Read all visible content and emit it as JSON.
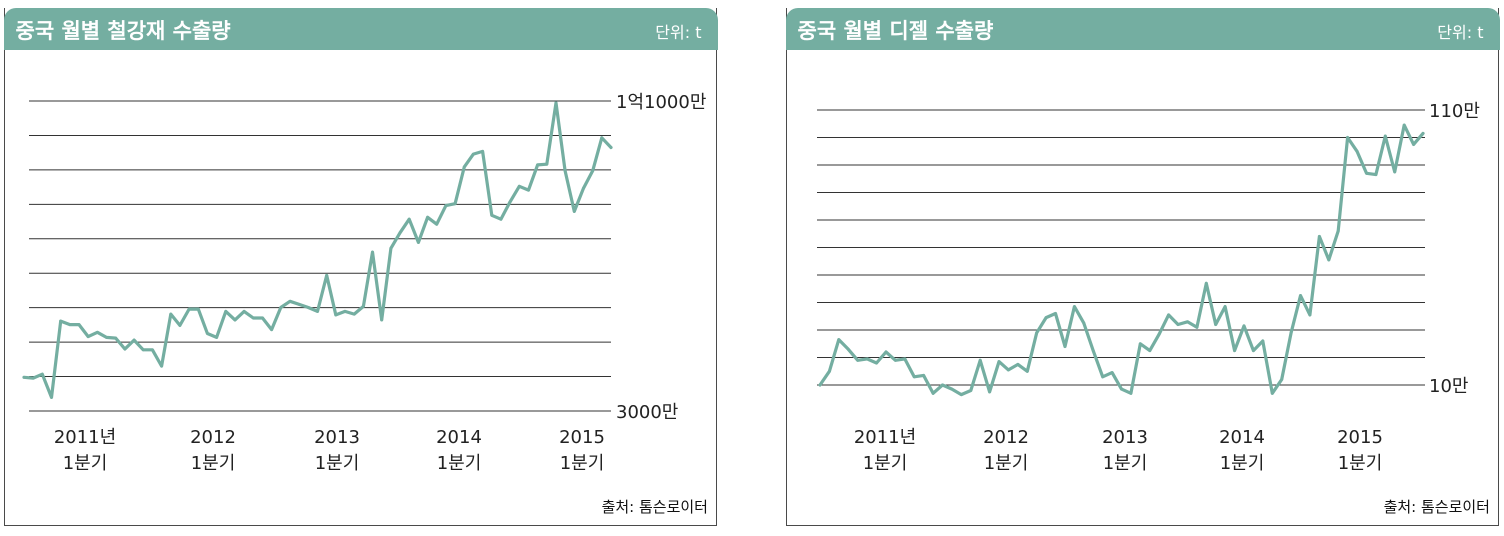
{
  "charts": [
    {
      "title": "중국 월별 철강재 수출량",
      "unit": "단위: t",
      "source": "출처: 톰슨로이터",
      "y_top_label": "1억1000만",
      "y_bottom_label": "3000만",
      "x_ticks": [
        {
          "year": "2011년",
          "quarter": "1분기"
        },
        {
          "year": "2012",
          "quarter": "1분기"
        },
        {
          "year": "2013",
          "quarter": "1분기"
        },
        {
          "year": "2014",
          "quarter": "1분기"
        },
        {
          "year": "2015",
          "quarter": "1분기"
        }
      ]
    },
    {
      "title": "중국 월별 디젤 수출량",
      "unit": "단위: t",
      "source": "출처: 톰슨로이터",
      "y_top_label": "110만",
      "y_bottom_label": "10만",
      "x_ticks": [
        {
          "year": "2011년",
          "quarter": "1분기"
        },
        {
          "year": "2012",
          "quarter": "1분기"
        },
        {
          "year": "2013",
          "quarter": "1분기"
        },
        {
          "year": "2014",
          "quarter": "1분기"
        },
        {
          "year": "2015",
          "quarter": "1분기"
        }
      ]
    }
  ],
  "chart_data": [
    {
      "type": "line",
      "title": "중국 월별 철강재 수출량",
      "unit": "t",
      "x_start": "2010-10",
      "ylim": [
        30000000,
        110000000
      ],
      "grid": true,
      "line_color": "#74aea1",
      "values": [
        38700000,
        38500000,
        39500000,
        33500000,
        53200000,
        52300000,
        52300000,
        49200000,
        50300000,
        49000000,
        48800000,
        46000000,
        48300000,
        45800000,
        45800000,
        41600000,
        55000000,
        52100000,
        56300000,
        56300000,
        50000000,
        49000000,
        55700000,
        53500000,
        55700000,
        54000000,
        54000000,
        51000000,
        56700000,
        58300000,
        57500000,
        56700000,
        55700000,
        65000000,
        54800000,
        55700000,
        55000000,
        57000000,
        71000000,
        53500000,
        72000000,
        76000000,
        79500000,
        73500000,
        80000000,
        78200000,
        83000000,
        83500000,
        93000000,
        96300000,
        97000000,
        80500000,
        79500000,
        84000000,
        88000000,
        87000000,
        93500000,
        93700000,
        109500000,
        92000000,
        81500000,
        87500000,
        92000000,
        100500000,
        98000000
      ]
    },
    {
      "type": "line",
      "title": "중국 월별 디젤 수출량",
      "unit": "t",
      "x_start": "2010-10",
      "ylim": [
        100000,
        1100000
      ],
      "grid": true,
      "line_color": "#74aea1",
      "values": [
        100000,
        150000,
        265000,
        230000,
        190000,
        195000,
        180000,
        220000,
        190000,
        195000,
        130000,
        135000,
        70000,
        100000,
        85000,
        65000,
        80000,
        190000,
        75000,
        185000,
        155000,
        175000,
        150000,
        290000,
        345000,
        360000,
        240000,
        385000,
        325000,
        225000,
        130000,
        145000,
        85000,
        70000,
        250000,
        225000,
        285000,
        355000,
        320000,
        330000,
        310000,
        470000,
        320000,
        385000,
        225000,
        315000,
        225000,
        260000,
        70000,
        120000,
        290000,
        425000,
        355000,
        640000,
        555000,
        660000,
        1000000,
        950000,
        870000,
        865000,
        1005000,
        875000,
        1045000,
        975000,
        1015000
      ]
    }
  ]
}
